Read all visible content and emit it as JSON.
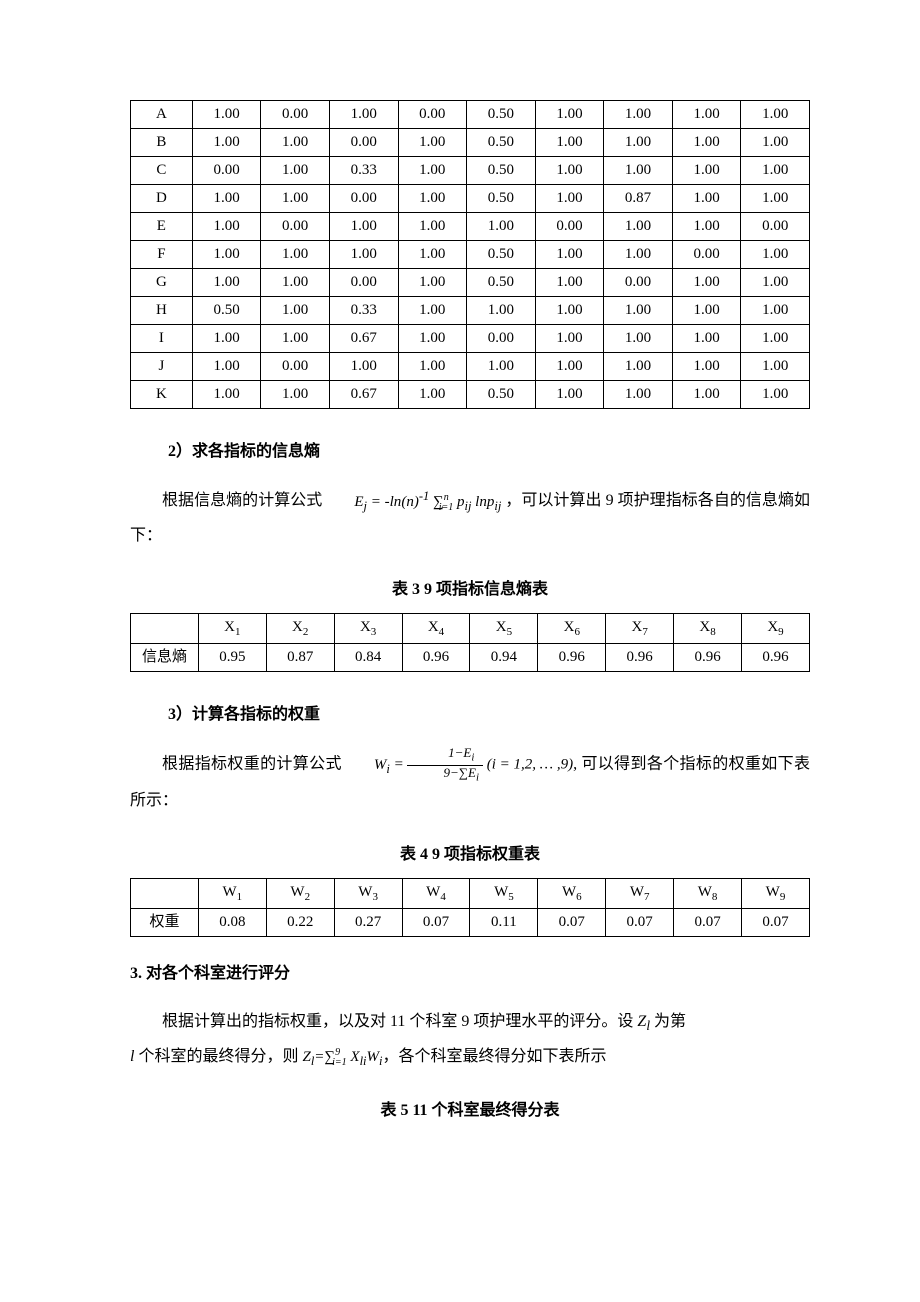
{
  "tableA": {
    "rows": [
      [
        "A",
        "1.00",
        "0.00",
        "1.00",
        "0.00",
        "0.50",
        "1.00",
        "1.00",
        "1.00",
        "1.00"
      ],
      [
        "B",
        "1.00",
        "1.00",
        "0.00",
        "1.00",
        "0.50",
        "1.00",
        "1.00",
        "1.00",
        "1.00"
      ],
      [
        "C",
        "0.00",
        "1.00",
        "0.33",
        "1.00",
        "0.50",
        "1.00",
        "1.00",
        "1.00",
        "1.00"
      ],
      [
        "D",
        "1.00",
        "1.00",
        "0.00",
        "1.00",
        "0.50",
        "1.00",
        "0.87",
        "1.00",
        "1.00"
      ],
      [
        "E",
        "1.00",
        "0.00",
        "1.00",
        "1.00",
        "1.00",
        "0.00",
        "1.00",
        "1.00",
        "0.00"
      ],
      [
        "F",
        "1.00",
        "1.00",
        "1.00",
        "1.00",
        "0.50",
        "1.00",
        "1.00",
        "0.00",
        "1.00"
      ],
      [
        "G",
        "1.00",
        "1.00",
        "0.00",
        "1.00",
        "0.50",
        "1.00",
        "0.00",
        "1.00",
        "1.00"
      ],
      [
        "H",
        "0.50",
        "1.00",
        "0.33",
        "1.00",
        "1.00",
        "1.00",
        "1.00",
        "1.00",
        "1.00"
      ],
      [
        "I",
        "1.00",
        "1.00",
        "0.67",
        "1.00",
        "0.00",
        "1.00",
        "1.00",
        "1.00",
        "1.00"
      ],
      [
        "J",
        "1.00",
        "0.00",
        "1.00",
        "1.00",
        "1.00",
        "1.00",
        "1.00",
        "1.00",
        "1.00"
      ],
      [
        "K",
        "1.00",
        "1.00",
        "0.67",
        "1.00",
        "0.50",
        "1.00",
        "1.00",
        "1.00",
        "1.00"
      ]
    ]
  },
  "sec2": {
    "heading": "2）求各指标的信息熵",
    "para_prefix": "根据信息熵的计算公式",
    "formula_text": "E_j = -ln(n)^{-1} \\sum_{i=1}^{n} p_{ij} ln p_{ij}",
    "para_suffix": " ，可以计算出 9 项护理指标各自的信息熵如下：",
    "caption": "表 3 9 项指标信息熵表"
  },
  "table3": {
    "row_label": "信息熵",
    "headers": [
      "X",
      "X",
      "X",
      "X",
      "X",
      "X",
      "X",
      "X",
      "X"
    ],
    "subs": [
      "1",
      "2",
      "3",
      "4",
      "5",
      "6",
      "7",
      "8",
      "9"
    ],
    "values": [
      "0.95",
      "0.87",
      "0.84",
      "0.96",
      "0.94",
      "0.96",
      "0.96",
      "0.96",
      "0.96"
    ]
  },
  "sec3": {
    "heading": "3）计算各指标的权重",
    "para_prefix": "根据指标权重的计算公式",
    "formula_text": "W_i = (1 - E_i)/(9 - \\sum E_i) (i = 1,2,...,9)",
    "para_suffix": ", 可以得到各个指标的权重如下表所示：",
    "caption": "表 4 9 项指标权重表"
  },
  "table4": {
    "row_label": "权重",
    "headers": [
      "W",
      "W",
      "W",
      "W",
      "W",
      "W",
      "W",
      "W",
      "W"
    ],
    "subs": [
      "1",
      "2",
      "3",
      "4",
      "5",
      "6",
      "7",
      "8",
      "9"
    ],
    "values": [
      "0.08",
      "0.22",
      "0.27",
      "0.07",
      "0.11",
      "0.07",
      "0.07",
      "0.07",
      "0.07"
    ]
  },
  "sec4": {
    "heading": "3. 对各个科室进行评分",
    "para_a_prefix": "根据计算出的指标权重，以及对 11 个科室 9 项护理水平的评分。设 ",
    "para_a_var": "Z",
    "para_a_sub": "l",
    "para_a_suffix": " 为第",
    "para_b_prefix_var": "l",
    "para_b_prefix_text": " 个科室的最终得分，则 ",
    "formula_text": "Z_l = \\sum_{i=1}^{9} X_{li} W_i",
    "para_b_suffix": "，各个科室最终得分如下表所示",
    "caption": "表 5 11 个科室最终得分表"
  }
}
